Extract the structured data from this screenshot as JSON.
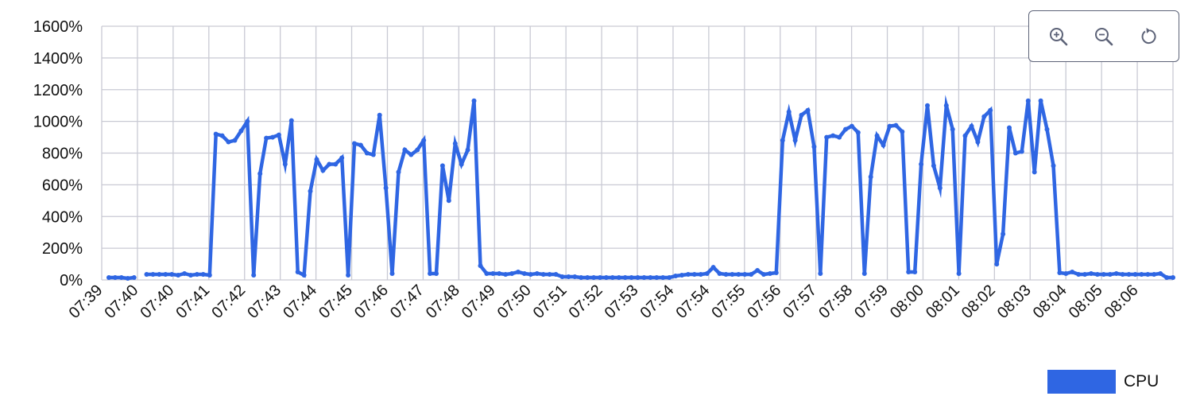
{
  "colors": {
    "series": "#2f66e3",
    "grid": "#c9cad4"
  },
  "toolbox": [
    {
      "name": "zoom-in",
      "icon": "zoom-in-icon"
    },
    {
      "name": "zoom-out",
      "icon": "zoom-out-icon"
    },
    {
      "name": "reset",
      "icon": "reset-icon"
    }
  ],
  "legend": {
    "label": "CPU"
  },
  "chart_data": {
    "type": "line",
    "xlabel": "",
    "ylabel": "",
    "ylim": [
      0,
      1600
    ],
    "y_ticks": [
      "0%",
      "200%",
      "400%",
      "600%",
      "800%",
      "1000%",
      "1200%",
      "1400%",
      "1600%"
    ],
    "x_ticks": [
      "07:39",
      "07:40",
      "07:40",
      "07:41",
      "07:42",
      "07:43",
      "07:44",
      "07:45",
      "07:46",
      "07:47",
      "07:48",
      "07:49",
      "07:50",
      "07:51",
      "07:52",
      "07:53",
      "07:54",
      "07:54",
      "07:55",
      "07:56",
      "07:57",
      "07:58",
      "07:59",
      "08:00",
      "08:01",
      "08:02",
      "08:03",
      "08:04",
      "08:05",
      "08:06"
    ],
    "grid": true,
    "legend_position": "bottom-right",
    "series": [
      {
        "name": "CPU",
        "values": [
          15,
          15,
          15,
          10,
          15,
          null,
          35,
          35,
          35,
          35,
          35,
          30,
          40,
          30,
          35,
          35,
          30,
          920,
          910,
          870,
          880,
          940,
          1000,
          30,
          670,
          895,
          900,
          915,
          730,
          1005,
          50,
          30,
          560,
          760,
          690,
          730,
          730,
          770,
          30,
          860,
          850,
          800,
          790,
          1040,
          580,
          40,
          680,
          820,
          790,
          820,
          880,
          40,
          40,
          720,
          500,
          860,
          730,
          820,
          1130,
          90,
          40,
          40,
          40,
          35,
          40,
          50,
          40,
          35,
          40,
          35,
          35,
          35,
          20,
          20,
          20,
          15,
          15,
          15,
          15,
          15,
          15,
          15,
          15,
          15,
          15,
          15,
          15,
          15,
          15,
          15,
          25,
          30,
          35,
          35,
          35,
          40,
          80,
          40,
          35,
          35,
          35,
          35,
          35,
          60,
          35,
          40,
          45,
          880,
          1060,
          880,
          1040,
          1070,
          840,
          40,
          900,
          910,
          900,
          950,
          970,
          930,
          40,
          650,
          910,
          850,
          970,
          975,
          935,
          50,
          50,
          730,
          1100,
          720,
          580,
          1100,
          950,
          40,
          910,
          970,
          870,
          1030,
          1070,
          100,
          290,
          960,
          800,
          810,
          1130,
          680,
          1130,
          950,
          720,
          45,
          40,
          50,
          35,
          35,
          40,
          35,
          35,
          35,
          40,
          35,
          35,
          35,
          35,
          35,
          35,
          40,
          15,
          15
        ]
      }
    ]
  }
}
